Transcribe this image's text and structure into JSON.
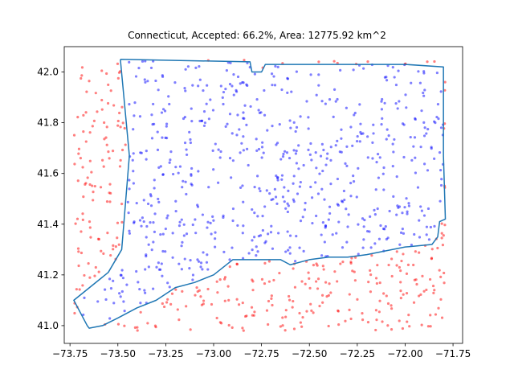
{
  "chart_data": {
    "type": "scatter",
    "title": "Connecticut, Accepted: 66.2%, Area: 12775.92 km^2",
    "xlabel": "",
    "ylabel": "",
    "xlim": [
      -73.78,
      -71.7
    ],
    "ylim": [
      40.93,
      42.1
    ],
    "xticks": [
      -73.75,
      -73.5,
      -73.25,
      -73.0,
      -72.75,
      -72.5,
      -72.25,
      -72.0,
      -71.75
    ],
    "xtick_labels": [
      "−73.75",
      "−73.50",
      "−73.25",
      "−73.00",
      "−72.75",
      "−72.50",
      "−72.25",
      "−72.00",
      "−71.75"
    ],
    "yticks": [
      41.0,
      41.2,
      41.4,
      41.6,
      41.8,
      42.0
    ],
    "ytick_labels": [
      "41.0",
      "41.2",
      "41.4",
      "41.6",
      "41.8",
      "42.0"
    ],
    "grid": false,
    "colors": {
      "accepted": "#0000ff",
      "rejected": "#ff0000",
      "boundary": "#1f77b4"
    },
    "point_count": 1000,
    "accepted_fraction": 0.662,
    "sample_bounds": {
      "x": [
        -73.73,
        -71.79
      ],
      "y": [
        40.98,
        42.05
      ]
    },
    "boundary": [
      [
        -73.487,
        42.05
      ],
      [
        -72.81,
        42.04
      ],
      [
        -72.8,
        42.0
      ],
      [
        -72.75,
        42.0
      ],
      [
        -72.73,
        42.03
      ],
      [
        -72.5,
        42.03
      ],
      [
        -72.0,
        42.03
      ],
      [
        -71.8,
        42.02
      ],
      [
        -71.8,
        41.67
      ],
      [
        -71.79,
        41.42
      ],
      [
        -71.82,
        41.41
      ],
      [
        -71.83,
        41.35
      ],
      [
        -71.86,
        41.32
      ],
      [
        -72.0,
        41.31
      ],
      [
        -72.2,
        41.28
      ],
      [
        -72.3,
        41.27
      ],
      [
        -72.4,
        41.27
      ],
      [
        -72.5,
        41.26
      ],
      [
        -72.6,
        41.24
      ],
      [
        -72.65,
        41.26
      ],
      [
        -72.75,
        41.26
      ],
      [
        -72.9,
        41.26
      ],
      [
        -73.0,
        41.2
      ],
      [
        -73.1,
        41.17
      ],
      [
        -73.2,
        41.15
      ],
      [
        -73.3,
        41.1
      ],
      [
        -73.4,
        41.07
      ],
      [
        -73.5,
        41.03
      ],
      [
        -73.58,
        41.0
      ],
      [
        -73.65,
        40.99
      ],
      [
        -73.66,
        41.0
      ],
      [
        -73.73,
        41.1
      ],
      [
        -73.55,
        41.21
      ],
      [
        -73.48,
        41.3
      ],
      [
        -73.44,
        41.67
      ],
      [
        -73.487,
        42.05
      ]
    ]
  }
}
